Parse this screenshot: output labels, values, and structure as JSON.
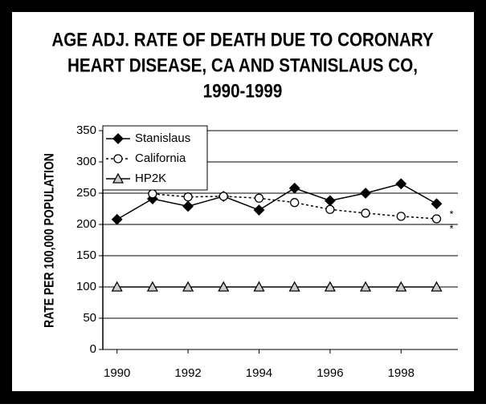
{
  "chart_data": {
    "type": "line",
    "title": [
      "AGE ADJ. RATE OF DEATH DUE TO CORONARY",
      "HEART DISEASE, CA AND STANISLAUS CO,",
      "1990-1999"
    ],
    "y_label": "RATE PER 100,000 POPULATION",
    "x": [
      1990,
      1991,
      1992,
      1993,
      1994,
      1995,
      1996,
      1997,
      1998,
      1999
    ],
    "series": [
      {
        "name": "Stanislaus",
        "color": "#000000",
        "marker": "diamond",
        "dash": "solid",
        "values": [
          208,
          241,
          229,
          245,
          223,
          258,
          238,
          250,
          265,
          233
        ]
      },
      {
        "name": "California",
        "color": "#000000",
        "marker": "circle",
        "dash": "dotted",
        "values": [
          null,
          249,
          244,
          245,
          242,
          235,
          224,
          218,
          213,
          209
        ]
      },
      {
        "name": "HP2K",
        "color": "#000000",
        "marker": "triangle",
        "dash": "solid",
        "values": [
          100,
          100,
          100,
          100,
          100,
          100,
          100,
          100,
          100,
          100
        ]
      }
    ],
    "annotations": [
      "*",
      "*"
    ],
    "xlim": [
      1989.6,
      1999.6
    ],
    "xticks": [
      1990,
      1992,
      1994,
      1996,
      1998
    ],
    "ylim": [
      0,
      350
    ],
    "yticks": [
      0,
      50,
      100,
      150,
      200,
      250,
      300,
      350
    ],
    "grid": true,
    "legend": "top-left"
  }
}
